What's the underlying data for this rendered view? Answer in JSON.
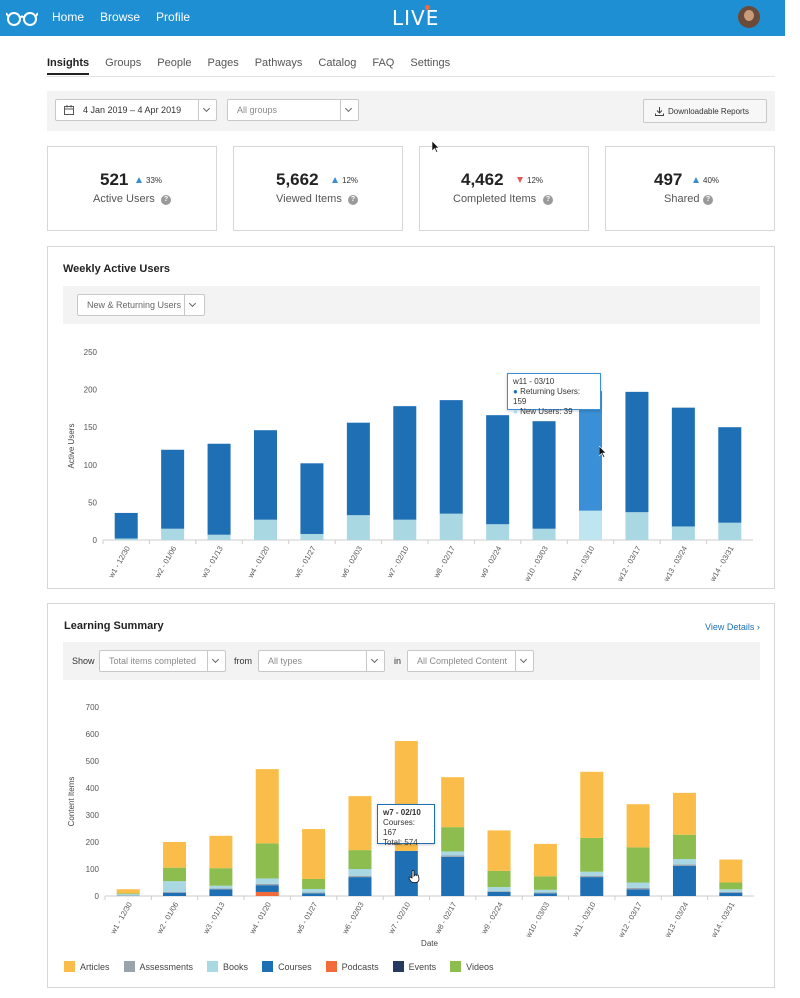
{
  "topbar": {
    "nav": [
      "Home",
      "Browse",
      "Profile"
    ],
    "brand": "LIVE",
    "color": "#1e8fd3"
  },
  "tabs": [
    "Insights",
    "Groups",
    "People",
    "Pages",
    "Pathways",
    "Catalog",
    "FAQ",
    "Settings"
  ],
  "filters": {
    "date_range": "4 Jan 2019 – 4 Apr 2019",
    "groups": "All groups",
    "download": "Downloadable Reports"
  },
  "kpis": [
    {
      "value": "521",
      "change": "33%",
      "direction": "up",
      "label": "Active Users"
    },
    {
      "value": "5,662",
      "change": "12%",
      "direction": "up",
      "label": "Viewed Items"
    },
    {
      "value": "4,462",
      "change": "12%",
      "direction": "down",
      "label": "Completed Items"
    },
    {
      "value": "497",
      "change": "40%",
      "direction": "up",
      "label": "Shared"
    }
  ],
  "weekly": {
    "title": "Weekly Active Users",
    "filter": "New & Returning Users",
    "tooltip": {
      "title": "w11 - 03/10",
      "line1": "Returning Users: 159",
      "line2": "New Users: 39"
    }
  },
  "learning": {
    "title": "Learning Summary",
    "view_details": "View Details",
    "show_label": "Show",
    "show_value": "Total items completed",
    "from_label": "from",
    "from_value": "All types",
    "in_label": "in",
    "in_value": "All Completed Content",
    "tooltip": {
      "title": "w7 - 02/10",
      "line1": "Courses: 167",
      "line2": "Total: 574"
    }
  },
  "colors": {
    "returning": "#1f6fb5",
    "returning_highlight": "#3a8fd6",
    "new": "#a9d8e3",
    "new_highlight": "#bfe6f0",
    "Articles": "#fbbd4a",
    "Assessments": "#9aa3ab",
    "Books": "#a9d8e3",
    "Courses": "#1f6fb5",
    "Podcasts": "#f26b3a",
    "Events": "#253a5e",
    "Videos": "#8cbd4e"
  },
  "chart_data": [
    {
      "type": "bar",
      "stacked": true,
      "ylabel": "Active Users",
      "ylim": [
        0,
        250
      ],
      "yticks": [
        0,
        50,
        100,
        150,
        200,
        250
      ],
      "categories": [
        "w1 - 12/30",
        "w2 - 01/06",
        "w3 - 01/13",
        "w4 - 01/20",
        "w5 - 01/27",
        "w6 - 02/03",
        "w7 - 02/10",
        "w8 - 02/17",
        "w9 - 02/24",
        "w10 - 03/03",
        "w11 - 03/10",
        "w12 - 03/17",
        "w13 - 03/24",
        "w14 - 03/31"
      ],
      "series": [
        {
          "name": "New Users",
          "values": [
            2,
            15,
            7,
            27,
            8,
            33,
            27,
            35,
            21,
            15,
            39,
            37,
            18,
            23
          ]
        },
        {
          "name": "Returning Users",
          "values": [
            34,
            105,
            121,
            119,
            94,
            123,
            151,
            151,
            145,
            143,
            159,
            160,
            158,
            127
          ]
        }
      ],
      "highlight_index": 10
    },
    {
      "type": "bar",
      "stacked": true,
      "xlabel": "Date",
      "ylabel": "Content Items",
      "ylim": [
        0,
        700
      ],
      "yticks": [
        0,
        100,
        200,
        300,
        400,
        500,
        600,
        700
      ],
      "categories": [
        "w1 - 12/30",
        "w2 - 01/06",
        "w3 - 01/13",
        "w4 - 01/20",
        "w5 - 01/27",
        "w6 - 02/03",
        "w7 - 02/10",
        "w8 - 02/17",
        "w9 - 02/24",
        "w10 - 03/03",
        "w11 - 03/10",
        "w12 - 03/17",
        "w13 - 03/24",
        "w14 - 03/31"
      ],
      "series": [
        {
          "name": "Events",
          "values": [
            0,
            0,
            0,
            0,
            0,
            0,
            0,
            0,
            0,
            0,
            0,
            0,
            0,
            0
          ]
        },
        {
          "name": "Podcasts",
          "values": [
            0,
            0,
            0,
            15,
            0,
            0,
            0,
            0,
            0,
            0,
            0,
            0,
            0,
            0
          ]
        },
        {
          "name": "Courses",
          "values": [
            0,
            12,
            25,
            25,
            10,
            70,
            167,
            145,
            15,
            10,
            70,
            25,
            112,
            12
          ]
        },
        {
          "name": "Assessments",
          "values": [
            2,
            3,
            3,
            5,
            3,
            5,
            0,
            5,
            3,
            3,
            5,
            5,
            5,
            3
          ]
        },
        {
          "name": "Books",
          "values": [
            5,
            40,
            10,
            20,
            13,
            25,
            0,
            15,
            15,
            10,
            15,
            20,
            20,
            10
          ]
        },
        {
          "name": "Videos",
          "values": [
            3,
            50,
            65,
            130,
            37,
            70,
            0,
            90,
            60,
            50,
            125,
            130,
            90,
            25
          ]
        },
        {
          "name": "Articles",
          "values": [
            15,
            95,
            120,
            275,
            185,
            200,
            407,
            185,
            150,
            120,
            245,
            160,
            155,
            85
          ]
        }
      ],
      "highlight_index": 6
    }
  ]
}
